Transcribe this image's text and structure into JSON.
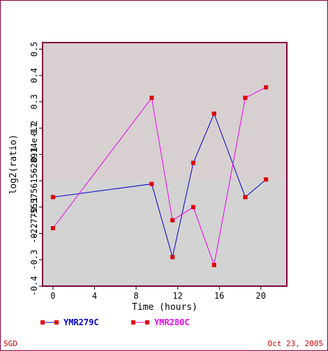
{
  "footer": {
    "source": "SGD",
    "date": "Oct 23, 2005"
  },
  "chart_data": {
    "type": "line",
    "xlabel": "Time (hours)",
    "ylabel": "log2(ratio)",
    "xlim": [
      -1,
      22.5
    ],
    "ylim": [
      -0.4,
      0.525
    ],
    "xticks": [
      0,
      4,
      8,
      12,
      16,
      20
    ],
    "ytick_values": [
      -0.4,
      -0.3,
      -0.2,
      -0.1,
      0.0,
      0.1,
      0.2,
      0.3,
      0.4,
      0.5
    ],
    "ytick_labels": [
      "-0.4",
      "-0.3",
      "-0.2",
      "-0.1",
      "-2.7755575615628914e-17",
      "0.1",
      "0.2",
      "0.3",
      "0.4",
      "0.5"
    ],
    "shaded_region": {
      "from": -0.4,
      "to": 0.0,
      "color": "#d3d3d3"
    },
    "plot_background": "#d8d0d0",
    "legend_position": "bottom-left",
    "series": [
      {
        "name": "YMR279C",
        "color": "#0000cc",
        "marker_color": "#dd0000",
        "x": [
          0,
          9.5,
          11.5,
          13.5,
          15.5,
          18.5,
          20.5
        ],
        "y": [
          -0.062,
          -0.012,
          -0.29,
          0.068,
          0.255,
          -0.062,
          0.005
        ]
      },
      {
        "name": "YMR280C",
        "color": "#ee00ee",
        "marker_color": "#dd0000",
        "x": [
          0,
          9.5,
          11.5,
          13.5,
          15.5,
          18.5,
          20.5
        ],
        "y": [
          -0.18,
          0.315,
          -0.15,
          -0.1,
          -0.32,
          0.315,
          0.355
        ]
      }
    ]
  }
}
